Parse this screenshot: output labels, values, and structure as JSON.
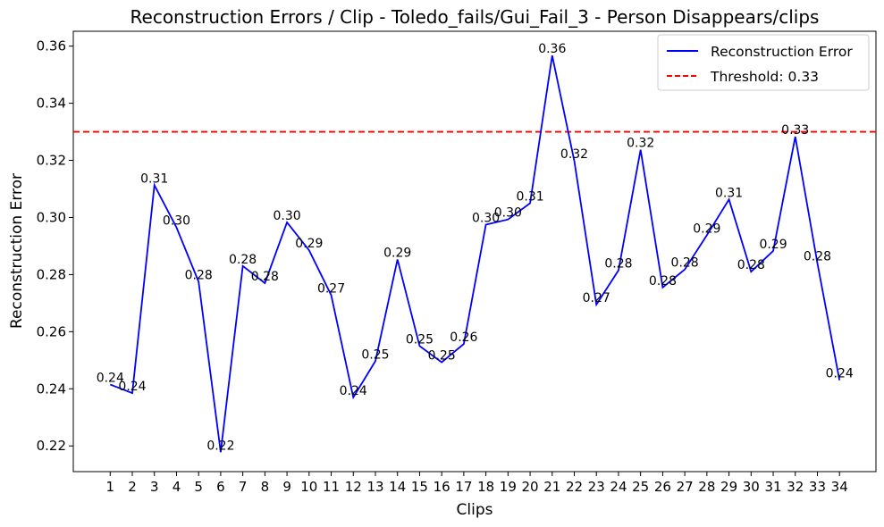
{
  "chart_data": {
    "type": "line",
    "title": "Reconstruction Errors / Clip - Toledo_fails/Gui_Fail_3 - Person Disappears/clips",
    "xlabel": "Clips",
    "ylabel": "Reconstruction Error",
    "x": [
      1,
      2,
      3,
      4,
      5,
      6,
      7,
      8,
      9,
      10,
      11,
      12,
      13,
      14,
      15,
      16,
      17,
      18,
      19,
      20,
      21,
      22,
      23,
      24,
      25,
      26,
      27,
      28,
      29,
      30,
      31,
      32,
      33,
      34
    ],
    "x_tick_labels": [
      "1",
      "2",
      "3",
      "4",
      "5",
      "6",
      "7",
      "8",
      "9",
      "10",
      "11",
      "12",
      "13",
      "14",
      "15",
      "16",
      "17",
      "18",
      "19",
      "20",
      "21",
      "22",
      "23",
      "24",
      "25",
      "26",
      "27",
      "28",
      "29",
      "30",
      "31",
      "32",
      "33",
      "34"
    ],
    "series": [
      {
        "name": "Reconstruction Error",
        "color": "#0000ff",
        "values": [
          0.2415,
          0.2385,
          0.3113,
          0.2965,
          0.2775,
          0.2178,
          0.283,
          0.277,
          0.2983,
          0.2885,
          0.2728,
          0.237,
          0.2497,
          0.2853,
          0.255,
          0.2493,
          0.2557,
          0.2975,
          0.2993,
          0.305,
          0.3567,
          0.3198,
          0.2695,
          0.2815,
          0.3237,
          0.2755,
          0.2818,
          0.2938,
          0.3063,
          0.281,
          0.2883,
          0.3283,
          0.284,
          0.243
        ],
        "data_labels": [
          "0.24",
          "0.24",
          "0.31",
          "0.30",
          "0.28",
          "0.22",
          "0.28",
          "0.28",
          "0.30",
          "0.29",
          "0.27",
          "0.24",
          "0.25",
          "0.29",
          "0.25",
          "0.25",
          "0.26",
          "0.30",
          "0.30",
          "0.31",
          "0.36",
          "0.32",
          "0.27",
          "0.28",
          "0.32",
          "0.28",
          "0.28",
          "0.29",
          "0.31",
          "0.28",
          "0.29",
          "0.33",
          "0.28",
          "0.24"
        ]
      }
    ],
    "threshold": {
      "name": "Threshold: 0.33",
      "value": 0.33,
      "color": "#ff0000",
      "style": "dashed"
    },
    "ylim": [
      0.211,
      0.3652
    ],
    "xlim": [
      -0.67,
      35.65
    ],
    "y_ticks": [
      0.22,
      0.24,
      0.26,
      0.28,
      0.3,
      0.32,
      0.34,
      0.36
    ],
    "y_tick_labels": [
      "0.22",
      "0.24",
      "0.26",
      "0.28",
      "0.30",
      "0.32",
      "0.34",
      "0.36"
    ],
    "grid": false,
    "legend_position": "top-right"
  }
}
